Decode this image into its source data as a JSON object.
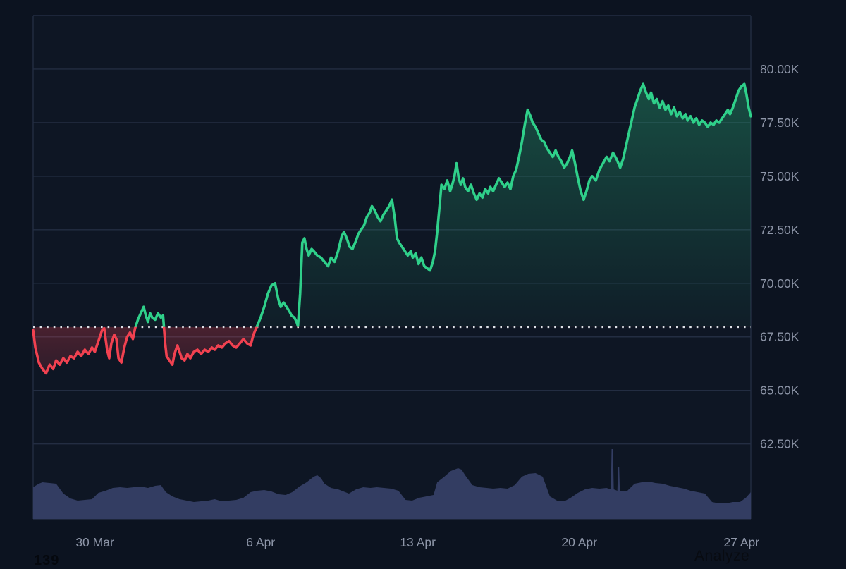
{
  "page": {
    "analyze_label": "Analyze",
    "footer_left_number": "139",
    "background": "#0c1320",
    "plot_background": "#0e1624"
  },
  "chart_data": {
    "type": "line",
    "title": "",
    "xlabel": "",
    "ylabel": "",
    "description": "Price line chart with baseline comparison fill (green above baseline, red below) and volume area underneath",
    "legend": "none",
    "grid": "horizontal",
    "ylim_k": [
      59.0,
      82.5
    ],
    "baseline_price_k": 67.96,
    "y_ticks": [
      {
        "label": "80.00K",
        "value_k": 80.0
      },
      {
        "label": "77.50K",
        "value_k": 77.5
      },
      {
        "label": "75.00K",
        "value_k": 75.0
      },
      {
        "label": "72.50K",
        "value_k": 72.5
      },
      {
        "label": "70.00K",
        "value_k": 70.0
      },
      {
        "label": "67.50K",
        "value_k": 67.5
      },
      {
        "label": "65.00K",
        "value_k": 65.0
      },
      {
        "label": "62.50K",
        "value_k": 62.5
      }
    ],
    "y_grid_values_k": [
      82.5,
      80.0,
      77.5,
      75.0,
      72.5,
      70.0,
      67.5,
      65.0,
      62.5
    ],
    "x_ticks": [
      {
        "label": "30 Mar",
        "t": 0.086
      },
      {
        "label": "6 Apr",
        "t": 0.317
      },
      {
        "label": "13 Apr",
        "t": 0.536
      },
      {
        "label": "20 Apr",
        "t": 0.761
      },
      {
        "label": "27 Apr",
        "t": 0.987
      }
    ],
    "colors": {
      "up": "#2fd08a",
      "down": "#f14150",
      "up_fill_rgb": "47,208,138",
      "down_fill_rgb": "241,65,80",
      "volume": "#333d62",
      "grid": "#232d42",
      "axis_text": "#8e96a8",
      "baseline": "#dde1e7"
    },
    "price_series_k": [
      [
        0.0,
        67.8
      ],
      [
        0.003,
        67.0
      ],
      [
        0.008,
        66.3
      ],
      [
        0.013,
        66.0
      ],
      [
        0.018,
        65.8
      ],
      [
        0.023,
        66.2
      ],
      [
        0.028,
        66.0
      ],
      [
        0.032,
        66.4
      ],
      [
        0.037,
        66.2
      ],
      [
        0.042,
        66.5
      ],
      [
        0.047,
        66.3
      ],
      [
        0.052,
        66.6
      ],
      [
        0.057,
        66.5
      ],
      [
        0.062,
        66.8
      ],
      [
        0.067,
        66.6
      ],
      [
        0.072,
        66.9
      ],
      [
        0.077,
        66.7
      ],
      [
        0.082,
        67.0
      ],
      [
        0.086,
        66.8
      ],
      [
        0.091,
        67.3
      ],
      [
        0.096,
        67.8
      ],
      [
        0.099,
        67.9
      ],
      [
        0.103,
        66.9
      ],
      [
        0.106,
        66.5
      ],
      [
        0.109,
        67.2
      ],
      [
        0.113,
        67.6
      ],
      [
        0.116,
        67.4
      ],
      [
        0.119,
        66.5
      ],
      [
        0.123,
        66.3
      ],
      [
        0.127,
        67.0
      ],
      [
        0.131,
        67.5
      ],
      [
        0.135,
        67.7
      ],
      [
        0.139,
        67.4
      ],
      [
        0.142,
        67.9
      ],
      [
        0.146,
        68.3
      ],
      [
        0.15,
        68.6
      ],
      [
        0.154,
        68.9
      ],
      [
        0.157,
        68.5
      ],
      [
        0.16,
        68.2
      ],
      [
        0.163,
        68.6
      ],
      [
        0.166,
        68.4
      ],
      [
        0.17,
        68.3
      ],
      [
        0.174,
        68.6
      ],
      [
        0.178,
        68.4
      ],
      [
        0.181,
        68.5
      ],
      [
        0.184,
        67.2
      ],
      [
        0.186,
        66.6
      ],
      [
        0.19,
        66.4
      ],
      [
        0.194,
        66.2
      ],
      [
        0.197,
        66.7
      ],
      [
        0.201,
        67.1
      ],
      [
        0.204,
        66.8
      ],
      [
        0.207,
        66.5
      ],
      [
        0.211,
        66.4
      ],
      [
        0.215,
        66.7
      ],
      [
        0.219,
        66.5
      ],
      [
        0.224,
        66.8
      ],
      [
        0.229,
        66.9
      ],
      [
        0.234,
        66.7
      ],
      [
        0.239,
        66.9
      ],
      [
        0.244,
        66.8
      ],
      [
        0.249,
        67.0
      ],
      [
        0.253,
        66.9
      ],
      [
        0.258,
        67.1
      ],
      [
        0.263,
        67.0
      ],
      [
        0.268,
        67.2
      ],
      [
        0.273,
        67.3
      ],
      [
        0.278,
        67.1
      ],
      [
        0.283,
        67.0
      ],
      [
        0.288,
        67.2
      ],
      [
        0.293,
        67.4
      ],
      [
        0.298,
        67.2
      ],
      [
        0.303,
        67.1
      ],
      [
        0.307,
        67.6
      ],
      [
        0.312,
        68.0
      ],
      [
        0.317,
        68.4
      ],
      [
        0.322,
        68.9
      ],
      [
        0.327,
        69.5
      ],
      [
        0.332,
        69.9
      ],
      [
        0.337,
        70.0
      ],
      [
        0.342,
        69.2
      ],
      [
        0.345,
        68.9
      ],
      [
        0.349,
        69.1
      ],
      [
        0.353,
        68.9
      ],
      [
        0.357,
        68.7
      ],
      [
        0.36,
        68.5
      ],
      [
        0.364,
        68.4
      ],
      [
        0.367,
        68.2
      ],
      [
        0.369,
        68.0
      ],
      [
        0.372,
        69.5
      ],
      [
        0.375,
        71.9
      ],
      [
        0.378,
        72.1
      ],
      [
        0.381,
        71.6
      ],
      [
        0.384,
        71.3
      ],
      [
        0.388,
        71.6
      ],
      [
        0.391,
        71.5
      ],
      [
        0.396,
        71.3
      ],
      [
        0.401,
        71.2
      ],
      [
        0.406,
        71.0
      ],
      [
        0.411,
        70.8
      ],
      [
        0.415,
        71.2
      ],
      [
        0.42,
        71.0
      ],
      [
        0.425,
        71.5
      ],
      [
        0.43,
        72.2
      ],
      [
        0.433,
        72.4
      ],
      [
        0.437,
        72.1
      ],
      [
        0.441,
        71.7
      ],
      [
        0.445,
        71.6
      ],
      [
        0.45,
        72.0
      ],
      [
        0.453,
        72.3
      ],
      [
        0.457,
        72.5
      ],
      [
        0.461,
        72.7
      ],
      [
        0.465,
        73.1
      ],
      [
        0.469,
        73.3
      ],
      [
        0.472,
        73.6
      ],
      [
        0.476,
        73.4
      ],
      [
        0.48,
        73.1
      ],
      [
        0.484,
        72.9
      ],
      [
        0.488,
        73.2
      ],
      [
        0.492,
        73.4
      ],
      [
        0.496,
        73.6
      ],
      [
        0.5,
        73.9
      ],
      [
        0.504,
        73.0
      ],
      [
        0.507,
        72.1
      ],
      [
        0.51,
        71.9
      ],
      [
        0.514,
        71.7
      ],
      [
        0.518,
        71.5
      ],
      [
        0.522,
        71.3
      ],
      [
        0.526,
        71.5
      ],
      [
        0.529,
        71.2
      ],
      [
        0.533,
        71.4
      ],
      [
        0.537,
        70.9
      ],
      [
        0.541,
        71.2
      ],
      [
        0.545,
        70.8
      ],
      [
        0.549,
        70.7
      ],
      [
        0.553,
        70.6
      ],
      [
        0.557,
        71.0
      ],
      [
        0.56,
        71.5
      ],
      [
        0.563,
        72.4
      ],
      [
        0.566,
        73.5
      ],
      [
        0.569,
        74.6
      ],
      [
        0.573,
        74.4
      ],
      [
        0.577,
        74.8
      ],
      [
        0.581,
        74.3
      ],
      [
        0.584,
        74.6
      ],
      [
        0.587,
        75.0
      ],
      [
        0.59,
        75.6
      ],
      [
        0.593,
        74.9
      ],
      [
        0.596,
        74.6
      ],
      [
        0.599,
        74.9
      ],
      [
        0.602,
        74.5
      ],
      [
        0.606,
        74.3
      ],
      [
        0.61,
        74.6
      ],
      [
        0.614,
        74.2
      ],
      [
        0.618,
        73.9
      ],
      [
        0.622,
        74.2
      ],
      [
        0.626,
        74.0
      ],
      [
        0.63,
        74.4
      ],
      [
        0.634,
        74.2
      ],
      [
        0.637,
        74.5
      ],
      [
        0.641,
        74.3
      ],
      [
        0.645,
        74.6
      ],
      [
        0.649,
        74.9
      ],
      [
        0.653,
        74.7
      ],
      [
        0.657,
        74.5
      ],
      [
        0.661,
        74.7
      ],
      [
        0.665,
        74.4
      ],
      [
        0.669,
        75.0
      ],
      [
        0.673,
        75.3
      ],
      [
        0.677,
        75.9
      ],
      [
        0.681,
        76.6
      ],
      [
        0.685,
        77.4
      ],
      [
        0.689,
        78.1
      ],
      [
        0.693,
        77.8
      ],
      [
        0.696,
        77.5
      ],
      [
        0.7,
        77.3
      ],
      [
        0.704,
        77.0
      ],
      [
        0.708,
        76.7
      ],
      [
        0.712,
        76.6
      ],
      [
        0.716,
        76.3
      ],
      [
        0.72,
        76.1
      ],
      [
        0.724,
        75.9
      ],
      [
        0.728,
        76.2
      ],
      [
        0.732,
        75.9
      ],
      [
        0.736,
        75.7
      ],
      [
        0.74,
        75.4
      ],
      [
        0.744,
        75.6
      ],
      [
        0.748,
        75.9
      ],
      [
        0.751,
        76.2
      ],
      [
        0.755,
        75.6
      ],
      [
        0.759,
        74.9
      ],
      [
        0.763,
        74.3
      ],
      [
        0.767,
        73.9
      ],
      [
        0.771,
        74.3
      ],
      [
        0.775,
        74.8
      ],
      [
        0.779,
        75.0
      ],
      [
        0.784,
        74.8
      ],
      [
        0.789,
        75.3
      ],
      [
        0.794,
        75.6
      ],
      [
        0.799,
        75.9
      ],
      [
        0.803,
        75.7
      ],
      [
        0.808,
        76.1
      ],
      [
        0.813,
        75.8
      ],
      [
        0.818,
        75.4
      ],
      [
        0.822,
        75.8
      ],
      [
        0.826,
        76.4
      ],
      [
        0.83,
        77.0
      ],
      [
        0.834,
        77.6
      ],
      [
        0.838,
        78.2
      ],
      [
        0.842,
        78.6
      ],
      [
        0.846,
        79.0
      ],
      [
        0.85,
        79.3
      ],
      [
        0.854,
        78.9
      ],
      [
        0.858,
        78.6
      ],
      [
        0.861,
        78.9
      ],
      [
        0.865,
        78.4
      ],
      [
        0.869,
        78.6
      ],
      [
        0.873,
        78.2
      ],
      [
        0.877,
        78.5
      ],
      [
        0.881,
        78.1
      ],
      [
        0.885,
        78.3
      ],
      [
        0.889,
        77.9
      ],
      [
        0.893,
        78.2
      ],
      [
        0.897,
        77.8
      ],
      [
        0.901,
        78.0
      ],
      [
        0.905,
        77.7
      ],
      [
        0.909,
        77.9
      ],
      [
        0.912,
        77.6
      ],
      [
        0.916,
        77.8
      ],
      [
        0.92,
        77.5
      ],
      [
        0.924,
        77.7
      ],
      [
        0.928,
        77.4
      ],
      [
        0.932,
        77.6
      ],
      [
        0.936,
        77.5
      ],
      [
        0.94,
        77.3
      ],
      [
        0.944,
        77.5
      ],
      [
        0.948,
        77.4
      ],
      [
        0.952,
        77.6
      ],
      [
        0.956,
        77.5
      ],
      [
        0.96,
        77.7
      ],
      [
        0.964,
        77.9
      ],
      [
        0.968,
        78.1
      ],
      [
        0.971,
        77.9
      ],
      [
        0.975,
        78.2
      ],
      [
        0.979,
        78.6
      ],
      [
        0.983,
        79.0
      ],
      [
        0.987,
        79.2
      ],
      [
        0.991,
        79.3
      ],
      [
        0.994,
        78.8
      ],
      [
        0.997,
        78.2
      ],
      [
        1.0,
        77.8
      ]
    ],
    "volume_series_relative": [
      [
        0.0,
        45
      ],
      [
        0.008,
        50
      ],
      [
        0.013,
        52
      ],
      [
        0.023,
        51
      ],
      [
        0.032,
        50
      ],
      [
        0.042,
        36
      ],
      [
        0.052,
        29
      ],
      [
        0.062,
        26
      ],
      [
        0.072,
        27
      ],
      [
        0.082,
        28
      ],
      [
        0.091,
        37
      ],
      [
        0.101,
        40
      ],
      [
        0.111,
        44
      ],
      [
        0.121,
        45
      ],
      [
        0.131,
        44
      ],
      [
        0.14,
        45
      ],
      [
        0.15,
        46
      ],
      [
        0.16,
        44
      ],
      [
        0.17,
        47
      ],
      [
        0.178,
        48
      ],
      [
        0.185,
        38
      ],
      [
        0.194,
        32
      ],
      [
        0.204,
        28
      ],
      [
        0.214,
        26
      ],
      [
        0.224,
        24
      ],
      [
        0.234,
        25
      ],
      [
        0.244,
        26
      ],
      [
        0.253,
        28
      ],
      [
        0.263,
        25
      ],
      [
        0.273,
        26
      ],
      [
        0.283,
        27
      ],
      [
        0.293,
        30
      ],
      [
        0.303,
        38
      ],
      [
        0.312,
        40
      ],
      [
        0.322,
        41
      ],
      [
        0.332,
        39
      ],
      [
        0.342,
        35
      ],
      [
        0.352,
        34
      ],
      [
        0.361,
        38
      ],
      [
        0.371,
        46
      ],
      [
        0.381,
        52
      ],
      [
        0.391,
        60
      ],
      [
        0.396,
        62
      ],
      [
        0.401,
        58
      ],
      [
        0.406,
        50
      ],
      [
        0.415,
        44
      ],
      [
        0.425,
        42
      ],
      [
        0.435,
        38
      ],
      [
        0.44,
        36
      ],
      [
        0.45,
        42
      ],
      [
        0.46,
        45
      ],
      [
        0.47,
        44
      ],
      [
        0.479,
        45
      ],
      [
        0.489,
        44
      ],
      [
        0.499,
        43
      ],
      [
        0.509,
        40
      ],
      [
        0.519,
        27
      ],
      [
        0.528,
        26
      ],
      [
        0.538,
        30
      ],
      [
        0.548,
        32
      ],
      [
        0.558,
        34
      ],
      [
        0.563,
        52
      ],
      [
        0.573,
        60
      ],
      [
        0.582,
        68
      ],
      [
        0.592,
        72
      ],
      [
        0.597,
        70
      ],
      [
        0.602,
        62
      ],
      [
        0.612,
        48
      ],
      [
        0.622,
        45
      ],
      [
        0.632,
        44
      ],
      [
        0.641,
        43
      ],
      [
        0.651,
        44
      ],
      [
        0.661,
        43
      ],
      [
        0.671,
        48
      ],
      [
        0.681,
        60
      ],
      [
        0.69,
        64
      ],
      [
        0.7,
        65
      ],
      [
        0.71,
        60
      ],
      [
        0.72,
        32
      ],
      [
        0.73,
        26
      ],
      [
        0.74,
        25
      ],
      [
        0.749,
        30
      ],
      [
        0.759,
        37
      ],
      [
        0.769,
        42
      ],
      [
        0.779,
        44
      ],
      [
        0.789,
        43
      ],
      [
        0.799,
        44
      ],
      [
        0.805,
        42
      ],
      [
        0.806,
        99
      ],
      [
        0.808,
        99
      ],
      [
        0.809,
        42
      ],
      [
        0.814,
        40
      ],
      [
        0.815,
        74
      ],
      [
        0.8165,
        74
      ],
      [
        0.8175,
        40
      ],
      [
        0.828,
        40
      ],
      [
        0.838,
        50
      ],
      [
        0.848,
        52
      ],
      [
        0.858,
        53
      ],
      [
        0.867,
        51
      ],
      [
        0.877,
        50
      ],
      [
        0.887,
        47
      ],
      [
        0.897,
        45
      ],
      [
        0.907,
        43
      ],
      [
        0.916,
        40
      ],
      [
        0.926,
        38
      ],
      [
        0.936,
        36
      ],
      [
        0.946,
        24
      ],
      [
        0.956,
        22
      ],
      [
        0.965,
        22
      ],
      [
        0.975,
        24
      ],
      [
        0.985,
        24
      ],
      [
        0.993,
        30
      ],
      [
        1.0,
        38
      ]
    ],
    "volume_units_note": "relative pixel heights, no numeric volume axis shown"
  }
}
